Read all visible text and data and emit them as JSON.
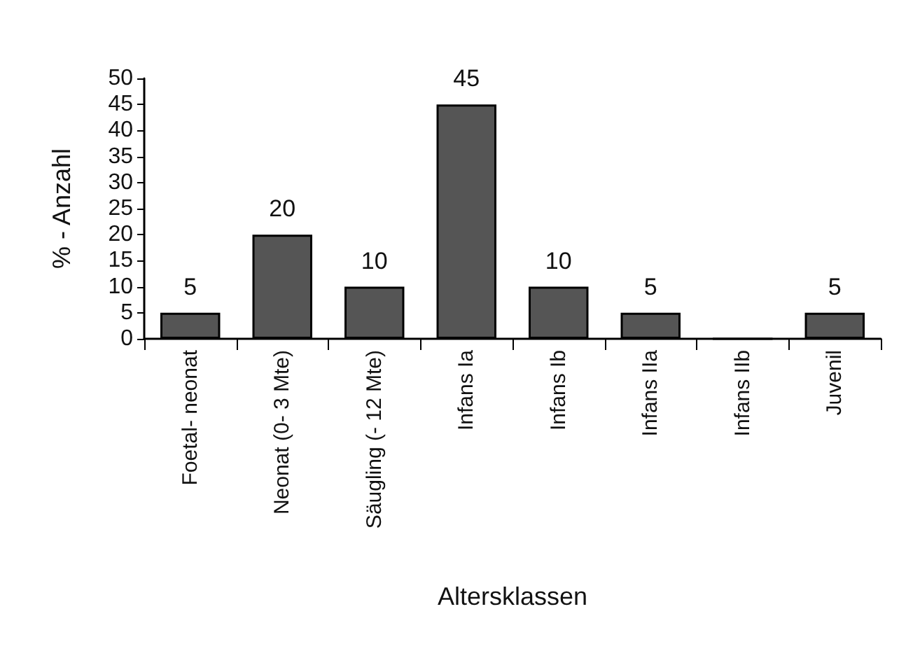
{
  "chart_data": {
    "type": "bar",
    "xlabel": "Altersklassen",
    "ylabel": "% - Anzahl",
    "categories": [
      "Foetal- neonat",
      "Neonat (0- 3 Mte)",
      "Säugling (- 12 Mte)",
      "Infans Ia",
      "Infans Ib",
      "Infans IIa",
      "Infans IIb",
      "Juvenil"
    ],
    "values": [
      5,
      20,
      10,
      45,
      10,
      5,
      0,
      5
    ],
    "value_labels": [
      "5",
      "20",
      "10",
      "45",
      "10",
      "5",
      null,
      "5"
    ],
    "color": "#555555",
    "ylim": [
      0,
      50
    ],
    "yticks": [
      0,
      5,
      10,
      15,
      20,
      25,
      30,
      35,
      40,
      45,
      50
    ],
    "grid": false
  }
}
